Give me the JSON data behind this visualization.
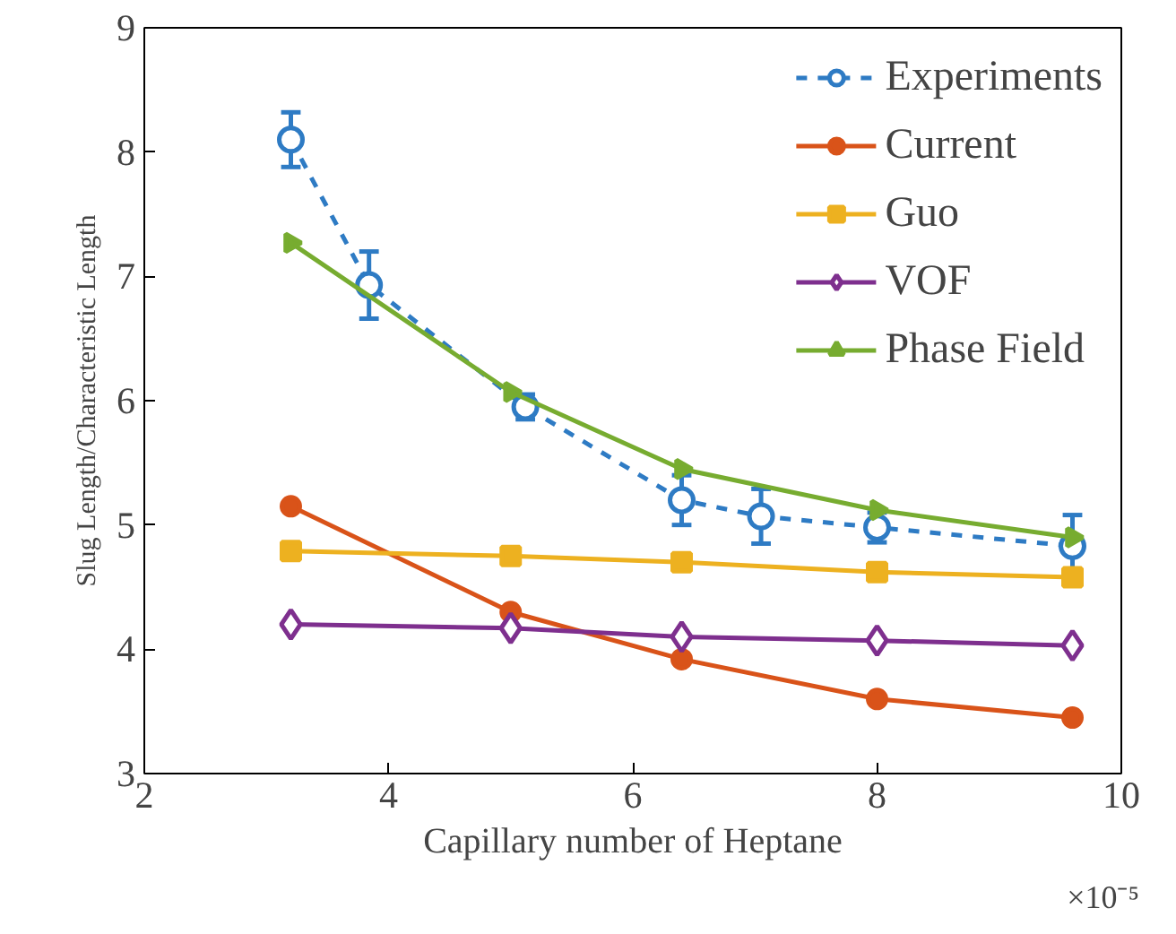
{
  "chart_data": {
    "type": "line",
    "xlabel": "Capillary number of Heptane",
    "ylabel": "Slug Length/Characteristic Length",
    "annotations": [
      "×10⁻⁵"
    ],
    "xlim": [
      2,
      10
    ],
    "xticks": [
      2,
      4,
      6,
      8,
      10
    ],
    "ylim": [
      3,
      9
    ],
    "yticks": [
      3,
      4,
      5,
      6,
      7,
      8,
      9
    ],
    "grid": false,
    "legend": "top right",
    "series": [
      {
        "name": "Experiments",
        "color": "#2e7bc4",
        "x": [
          3.2,
          3.84,
          5.12,
          6.4,
          7.05,
          8,
          9.6
        ],
        "values": [
          8.1,
          6.93,
          5.95,
          5.2,
          5.07,
          4.98,
          4.83
        ],
        "errors": [
          0.22,
          0.27,
          0.1,
          0.2,
          0.22,
          0.12,
          0.25
        ],
        "marker": "circle",
        "line_style": "dashed"
      },
      {
        "name": "Current",
        "color": "#d95319",
        "x": [
          3.2,
          5,
          6.4,
          8,
          9.6
        ],
        "values": [
          5.15,
          4.3,
          3.92,
          3.6,
          3.45
        ],
        "marker": "circle",
        "line_style": "solid"
      },
      {
        "name": "Guo",
        "color": "#edb120",
        "x": [
          3.2,
          5,
          6.4,
          8,
          9.6
        ],
        "values": [
          4.79,
          4.75,
          4.7,
          4.62,
          4.58
        ],
        "marker": "square",
        "line_style": "solid"
      },
      {
        "name": "VOF",
        "color": "#7e2f8e",
        "x": [
          3.2,
          5,
          6.4,
          8,
          9.6
        ],
        "values": [
          4.2,
          4.17,
          4.1,
          4.07,
          4.03
        ],
        "marker": "diamond",
        "line_style": "solid"
      },
      {
        "name": "Phase Field",
        "color": "#77ac30",
        "x": [
          3.2,
          5,
          6.4,
          8,
          9.6
        ],
        "values": [
          7.27,
          6.07,
          5.45,
          5.12,
          4.9
        ],
        "marker": "triangle",
        "line_style": "solid"
      }
    ]
  }
}
